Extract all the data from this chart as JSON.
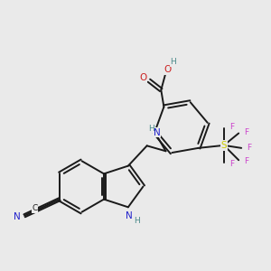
{
  "bg_color": "#eaeaea",
  "bond_color": "#1a1a1a",
  "lw": 1.4,
  "colors": {
    "N": "#2222cc",
    "O": "#cc2222",
    "S": "#cccc00",
    "F": "#cc44cc",
    "H": "#4a8a8a",
    "C": "#1a1a1a"
  },
  "fs": 7.5,
  "fs_small": 6.5
}
